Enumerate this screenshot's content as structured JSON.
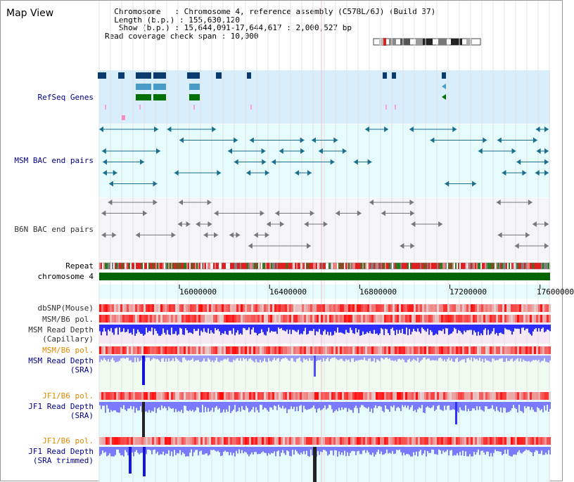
{
  "header": {
    "title": "Map View",
    "info_lines": [
      "  Chromosome   : Chromosome 4, reference assembly (C57BL/6J) (Build 37)",
      "  Length (b.p.) : 155,630,120",
      "   Show (b.p.) : 15,644,091-17,644,617 : 2,000,527 bp",
      "Read coverage check span : 10,000"
    ]
  },
  "tracks": {
    "refseq": "RefSeq Genes",
    "msm_bac": "MSM BAC end pairs",
    "b6n_bac": "B6N BAC end pairs",
    "repeat": "Repeat",
    "chromosome": "chromosome 4",
    "dbsnp": "dbSNP(Mouse)",
    "msm_b6_pol_1": "MSM/B6 pol.",
    "msm_depth_cap_1": "MSM Read Depth",
    "msm_depth_cap_2": "(Capillary)",
    "msm_b6_pol_2": "MSM/B6 pol.",
    "msm_depth_sra_1": "MSM Read Depth",
    "msm_depth_sra_2": "(SRA)",
    "jf1_b6_pol_1": "JF1/B6 pol.",
    "jf1_depth_sra_1": "JF1 Read Depth",
    "jf1_depth_sra_2": "(SRA)",
    "jf1_b6_pol_2": "JF1/B6 pol.",
    "jf1_depth_trim_1": "JF1 Read Depth",
    "jf1_depth_trim_2": "(SRA trimmed)"
  },
  "axis": {
    "ticks": [
      "16000000",
      "16400000",
      "16800000",
      "17200000",
      "17600000"
    ],
    "tick_values": [
      16000000,
      16400000,
      16800000,
      17200000,
      17600000
    ],
    "view_start": 15644091,
    "view_end": 17644617
  },
  "colors": {
    "refseq_bg": "#d8eefa",
    "msm_bg": "#e6fbfb",
    "b6n_bg": "#f4f4f9",
    "gene_dark": "#0a3a6e",
    "gene_mid": "#4a9cc8",
    "gene_green": "#007000",
    "msm_feature": "#1a6e8e",
    "b6n_feature": "#777777",
    "chromosome": "#006400",
    "depth_blue": "#3a3aff",
    "pol_red": "#f05050"
  }
}
